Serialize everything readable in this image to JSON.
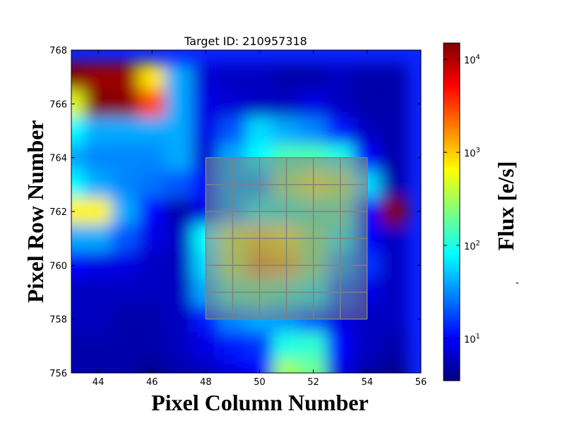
{
  "chart_data": {
    "type": "heatmap",
    "title": "Target ID: 210957318",
    "xlabel": "Pixel Column Number",
    "ylabel": "Pixel Row Number",
    "xlim": [
      43,
      56
    ],
    "ylim": [
      756,
      768
    ],
    "x_ticks": [
      44,
      46,
      48,
      50,
      52,
      54,
      56
    ],
    "y_ticks": [
      756,
      758,
      760,
      762,
      764,
      766,
      768
    ],
    "x_tick_labels": [
      "44",
      "46",
      "48",
      "50",
      "52",
      "54",
      "56"
    ],
    "y_tick_labels": [
      "756",
      "758",
      "760",
      "762",
      "764",
      "766",
      "768"
    ],
    "colorbar": {
      "label": "Flux [e/s]",
      "scale": "log",
      "range": [
        3.5,
        15000
      ],
      "ticks": [
        10,
        100,
        1000,
        10000
      ],
      "tick_labels": [
        {
          "base": "10",
          "exp": "1"
        },
        {
          "base": "10",
          "exp": "2"
        },
        {
          "base": "10",
          "exp": "3"
        },
        {
          "base": "10",
          "exp": "4"
        }
      ],
      "colormap": "jet"
    },
    "pixel_grid": {
      "col0": 43,
      "row0": 767,
      "rows_top_to_bottom": [
        [
          14000,
          12000,
          12000,
          800,
          40,
          7,
          6,
          6,
          5,
          5,
          6,
          5,
          5
        ],
        [
          500,
          15000,
          14000,
          3000,
          40,
          8,
          7,
          6,
          6,
          8,
          6,
          5,
          5
        ],
        [
          80,
          40,
          40,
          40,
          40,
          8,
          20,
          60,
          40,
          30,
          12,
          6,
          5
        ],
        [
          40,
          30,
          30,
          30,
          40,
          7,
          40,
          80,
          150,
          150,
          100,
          10,
          5
        ],
        [
          80,
          40,
          30,
          25,
          20,
          10,
          40,
          40,
          300,
          600,
          400,
          60,
          5
        ],
        [
          700,
          700,
          40,
          10,
          5,
          8,
          40,
          100,
          120,
          160,
          180,
          10,
          15000
        ],
        [
          40,
          40,
          20,
          8,
          6,
          80,
          500,
          900,
          700,
          260,
          100,
          10,
          6
        ],
        [
          10,
          8,
          8,
          6,
          6,
          60,
          400,
          1400,
          1100,
          250,
          40,
          15,
          6
        ],
        [
          6,
          6,
          6,
          6,
          6,
          40,
          160,
          200,
          150,
          100,
          20,
          8,
          6
        ],
        [
          6,
          6,
          5,
          5,
          6,
          12,
          30,
          40,
          35,
          20,
          8,
          6,
          6
        ],
        [
          5,
          5,
          5,
          5,
          6,
          8,
          12,
          15,
          100,
          120,
          10,
          6,
          5
        ],
        [
          5,
          5,
          5,
          4,
          5,
          6,
          8,
          10,
          300,
          200,
          8,
          5,
          4
        ]
      ]
    },
    "aperture": {
      "col_range": [
        48,
        54
      ],
      "row_range": [
        758,
        764
      ],
      "color": "#808080"
    }
  },
  "stray_mark": "-"
}
